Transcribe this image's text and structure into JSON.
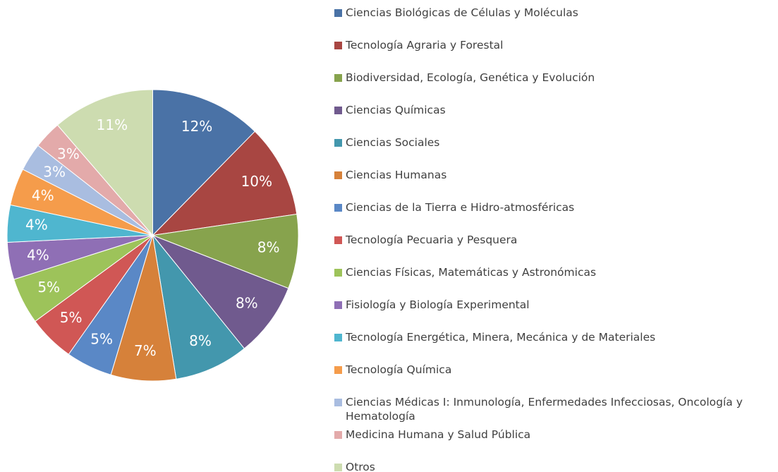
{
  "chart_data": {
    "type": "pie",
    "categories": [
      "Ciencias Biológicas de Células y Moléculas",
      "Tecnología Agraria y Forestal",
      "Biodiversidad, Ecología, Genética y Evolución",
      "Ciencias Químicas",
      "Ciencias Sociales",
      "Ciencias Humanas",
      "Ciencias de la Tierra e Hidro-atmosféricas",
      "Tecnología Pecuaria y Pesquera",
      "Ciencias Físicas, Matemáticas y Astronómicas",
      "Fisiología y Biología Experimental",
      "Tecnología Energética, Minera, Mecánica y de Materiales",
      "Tecnología Química",
      "Ciencias Médicas I: Inmunología, Enfermedades Infecciosas, Oncología y Hematología",
      "Medicina Humana y Salud Pública",
      "Otros"
    ],
    "values": [
      12,
      10,
      8,
      8,
      8,
      7,
      5,
      5,
      5,
      4,
      4,
      4,
      3,
      3,
      11
    ],
    "value_labels": [
      "12%",
      "10%",
      "8%",
      "8%",
      "8%",
      "7%",
      "5%",
      "5%",
      "5%",
      "4%",
      "4%",
      "4%",
      "3%",
      "3%",
      "11%"
    ],
    "colors": [
      "#4a72a6",
      "#a84642",
      "#87a34d",
      "#705a8e",
      "#4397ad",
      "#d6813a",
      "#5a88c6",
      "#d05755",
      "#9dc35a",
      "#8f6fb5",
      "#4fb6cf",
      "#f59c4b",
      "#a9bde0",
      "#e3aaaa",
      "#cddcb0"
    ]
  }
}
